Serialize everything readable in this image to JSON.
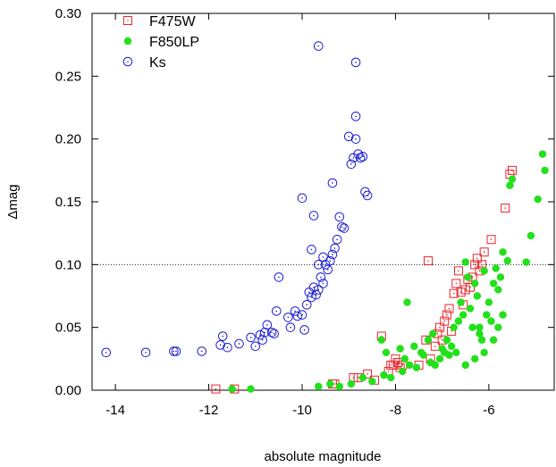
{
  "chart_data": {
    "type": "scatter",
    "xlabel": "absolute magnitude",
    "ylabel": "Δmag",
    "xlim": [
      -14.5,
      -4.6
    ],
    "ylim": [
      0,
      0.3
    ],
    "xticks": [
      -14,
      -12,
      -10,
      -8,
      -6
    ],
    "xtick_labels": [
      "-14",
      "-12",
      "-10",
      "-8",
      "-6"
    ],
    "yticks": [
      0,
      0.05,
      0.1,
      0.15,
      0.2,
      0.25,
      0.3
    ],
    "ytick_labels": [
      "0.00",
      "0.05",
      "0.10",
      "0.15",
      "0.20",
      "0.25",
      "0.30"
    ],
    "reference_line": {
      "y": 0.1,
      "style": "dotted"
    },
    "grid": false,
    "legend": "top-left",
    "series": [
      {
        "name": "F475W",
        "marker": "open-square-dot",
        "color": "#e8242a",
        "points": [
          [
            -11.85,
            0.001
          ],
          [
            -11.45,
            0.001
          ],
          [
            -9.35,
            0.005
          ],
          [
            -9.3,
            0.005
          ],
          [
            -8.9,
            0.01
          ],
          [
            -8.8,
            0.01
          ],
          [
            -8.6,
            0.013
          ],
          [
            -8.45,
            0.008
          ],
          [
            -8.3,
            0.043
          ],
          [
            -8.15,
            0.015
          ],
          [
            -8.1,
            0.02
          ],
          [
            -8.05,
            0.02
          ],
          [
            -8.0,
            0.025
          ],
          [
            -7.95,
            0.022
          ],
          [
            -7.9,
            0.018
          ],
          [
            -7.85,
            0.02
          ],
          [
            -7.5,
            0.02
          ],
          [
            -7.35,
            0.04
          ],
          [
            -7.3,
            0.103
          ],
          [
            -7.25,
            0.025
          ],
          [
            -7.15,
            0.035
          ],
          [
            -7.1,
            0.045
          ],
          [
            -7.05,
            0.05
          ],
          [
            -7.0,
            0.04
          ],
          [
            -6.95,
            0.055
          ],
          [
            -6.9,
            0.06
          ],
          [
            -6.85,
            0.065
          ],
          [
            -6.8,
            0.047
          ],
          [
            -6.75,
            0.077
          ],
          [
            -6.7,
            0.085
          ],
          [
            -6.65,
            0.095
          ],
          [
            -6.6,
            0.078
          ],
          [
            -6.55,
            0.068
          ],
          [
            -6.5,
            0.08
          ],
          [
            -6.45,
            0.088
          ],
          [
            -6.4,
            0.082
          ],
          [
            -6.35,
            0.09
          ],
          [
            -6.3,
            0.1
          ],
          [
            -6.25,
            0.105
          ],
          [
            -6.2,
            0.095
          ],
          [
            -6.15,
            0.1
          ],
          [
            -6.1,
            0.11
          ],
          [
            -5.95,
            0.12
          ],
          [
            -5.65,
            0.145
          ],
          [
            -5.55,
            0.172
          ],
          [
            -5.5,
            0.175
          ]
        ]
      },
      {
        "name": "F850LP",
        "marker": "filled-circle",
        "color": "#22e01a",
        "points": [
          [
            -11.5,
            0.001
          ],
          [
            -11.1,
            0.001
          ],
          [
            -9.65,
            0.003
          ],
          [
            -9.4,
            0.005
          ],
          [
            -9.2,
            0.003
          ],
          [
            -8.95,
            0.005
          ],
          [
            -8.7,
            0.01
          ],
          [
            -8.5,
            0.007
          ],
          [
            -8.3,
            0.04
          ],
          [
            -8.25,
            0.012
          ],
          [
            -8.2,
            0.03
          ],
          [
            -8.1,
            0.01
          ],
          [
            -7.9,
            0.033
          ],
          [
            -7.85,
            0.015
          ],
          [
            -7.8,
            0.025
          ],
          [
            -7.75,
            0.07
          ],
          [
            -7.7,
            0.02
          ],
          [
            -7.6,
            0.035
          ],
          [
            -7.55,
            0.018
          ],
          [
            -7.45,
            0.03
          ],
          [
            -7.4,
            0.028
          ],
          [
            -7.3,
            0.04
          ],
          [
            -7.25,
            0.022
          ],
          [
            -7.2,
            0.045
          ],
          [
            -7.15,
            0.02
          ],
          [
            -7.05,
            0.025
          ],
          [
            -7.0,
            0.033
          ],
          [
            -6.95,
            0.03
          ],
          [
            -6.9,
            0.04
          ],
          [
            -6.85,
            0.028
          ],
          [
            -6.8,
            0.035
          ],
          [
            -6.75,
            0.05
          ],
          [
            -6.7,
            0.03
          ],
          [
            -6.65,
            0.055
          ],
          [
            -6.6,
            0.07
          ],
          [
            -6.55,
            0.06
          ],
          [
            -6.5,
            0.102
          ],
          [
            -6.45,
            0.09
          ],
          [
            -6.4,
            0.065
          ],
          [
            -6.35,
            0.05
          ],
          [
            -6.3,
            0.085
          ],
          [
            -6.25,
            0.075
          ],
          [
            -6.2,
            0.045
          ],
          [
            -6.15,
            0.04
          ],
          [
            -6.1,
            0.095
          ],
          [
            -6.05,
            0.06
          ],
          [
            -6.0,
            0.07
          ],
          [
            -5.95,
            0.055
          ],
          [
            -5.9,
            0.085
          ],
          [
            -5.85,
            0.097
          ],
          [
            -5.8,
            0.08
          ],
          [
            -5.75,
            0.09
          ],
          [
            -5.7,
            0.11
          ],
          [
            -5.6,
            0.103
          ],
          [
            -5.55,
            0.163
          ],
          [
            -5.5,
            0.168
          ],
          [
            -5.2,
            0.102
          ],
          [
            -5.1,
            0.123
          ],
          [
            -4.95,
            0.152
          ],
          [
            -4.85,
            0.188
          ],
          [
            -4.8,
            0.175
          ],
          [
            -6.5,
            0.02
          ],
          [
            -6.3,
            0.025
          ],
          [
            -6.2,
            0.05
          ],
          [
            -6.1,
            0.03
          ],
          [
            -5.9,
            0.04
          ],
          [
            -5.8,
            0.05
          ],
          [
            -5.7,
            0.06
          ]
        ]
      },
      {
        "name": "Ks",
        "marker": "open-circle-dot",
        "color": "#1c1cd0",
        "points": [
          [
            -14.2,
            0.03
          ],
          [
            -13.35,
            0.03
          ],
          [
            -12.75,
            0.031
          ],
          [
            -12.7,
            0.031
          ],
          [
            -12.15,
            0.031
          ],
          [
            -11.75,
            0.036
          ],
          [
            -11.7,
            0.043
          ],
          [
            -11.6,
            0.034
          ],
          [
            -11.35,
            0.037
          ],
          [
            -11.1,
            0.042
          ],
          [
            -11.0,
            0.035
          ],
          [
            -10.9,
            0.044
          ],
          [
            -10.85,
            0.04
          ],
          [
            -10.8,
            0.046
          ],
          [
            -10.75,
            0.052
          ],
          [
            -10.65,
            0.046
          ],
          [
            -10.6,
            0.045
          ],
          [
            -10.55,
            0.063
          ],
          [
            -10.5,
            0.09
          ],
          [
            -10.3,
            0.058
          ],
          [
            -10.25,
            0.05
          ],
          [
            -10.15,
            0.063
          ],
          [
            -10.1,
            0.059
          ],
          [
            -10.0,
            0.06
          ],
          [
            -9.95,
            0.048
          ],
          [
            -9.9,
            0.068
          ],
          [
            -9.85,
            0.078
          ],
          [
            -9.8,
            0.074
          ],
          [
            -9.75,
            0.082
          ],
          [
            -9.7,
            0.076
          ],
          [
            -9.65,
            0.08
          ],
          [
            -9.6,
            0.09
          ],
          [
            -9.55,
            0.085
          ],
          [
            -9.5,
            0.1
          ],
          [
            -9.45,
            0.096
          ],
          [
            -9.4,
            0.103
          ],
          [
            -9.35,
            0.108
          ],
          [
            -9.3,
            0.113
          ],
          [
            -9.25,
            0.12
          ],
          [
            -9.2,
            0.138
          ],
          [
            -9.15,
            0.13
          ],
          [
            -9.1,
            0.129
          ],
          [
            -9.0,
            0.202
          ],
          [
            -8.95,
            0.18
          ],
          [
            -8.9,
            0.185
          ],
          [
            -8.85,
            0.2
          ],
          [
            -8.8,
            0.188
          ],
          [
            -8.75,
            0.185
          ],
          [
            -8.7,
            0.186
          ],
          [
            -8.65,
            0.158
          ],
          [
            -8.6,
            0.155
          ],
          [
            -9.65,
            0.274
          ],
          [
            -8.85,
            0.261
          ],
          [
            -8.85,
            0.218
          ],
          [
            -9.35,
            0.165
          ],
          [
            -10.0,
            0.153
          ],
          [
            -9.75,
            0.139
          ],
          [
            -9.8,
            0.112
          ],
          [
            -9.65,
            0.1
          ],
          [
            -9.55,
            0.106
          ]
        ]
      }
    ]
  }
}
